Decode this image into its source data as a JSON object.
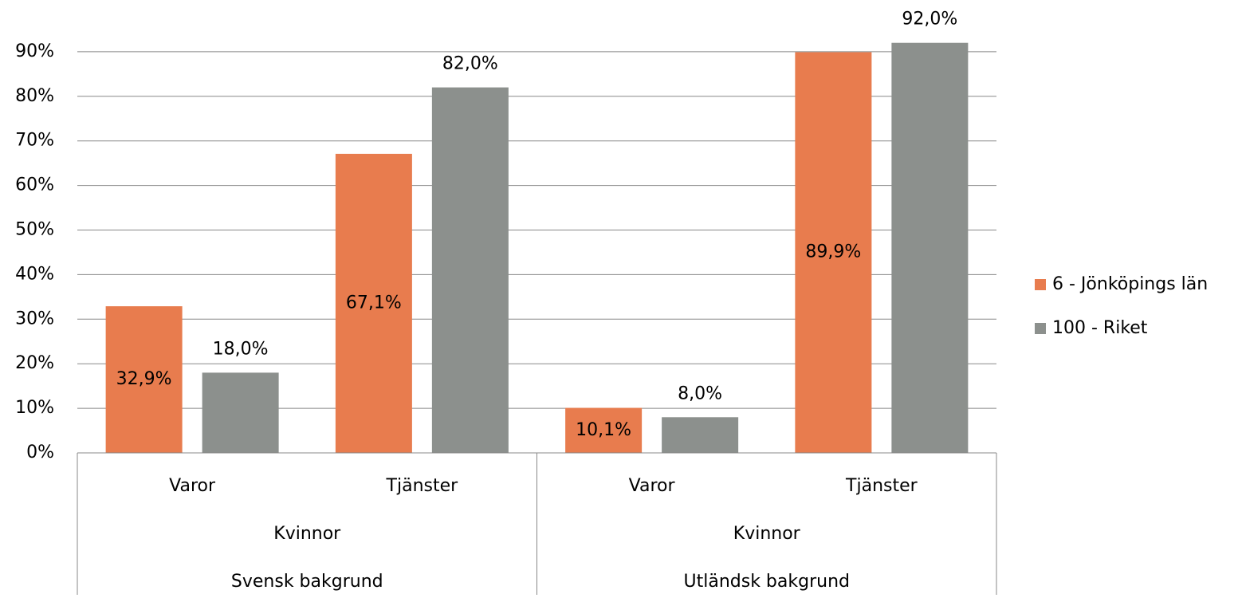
{
  "chart_data": {
    "type": "bar",
    "categories": [
      "Varor",
      "Tjänster",
      "Varor",
      "Tjänster"
    ],
    "subgroups": [
      "Kvinnor",
      "Kvinnor"
    ],
    "groups": [
      "Svensk bakgrund",
      "Utländsk bakgrund"
    ],
    "series": [
      {
        "name": "6 - Jönköpings län",
        "color": "#e87c4e",
        "values": [
          32.9,
          67.1,
          10.1,
          89.9
        ],
        "value_labels": [
          "32,9%",
          "67,1%",
          "10,1%",
          "89,9%"
        ]
      },
      {
        "name": "100 - Riket",
        "color": "#8c908d",
        "values": [
          18.0,
          82.0,
          8.0,
          92.0
        ],
        "value_labels": [
          "18,0%",
          "82,0%",
          "8,0%",
          "92,0%"
        ]
      }
    ],
    "ylim": [
      0,
      100
    ],
    "yticks": [
      {
        "value": 0,
        "label": "0%"
      },
      {
        "value": 10,
        "label": "10%"
      },
      {
        "value": 20,
        "label": "20%"
      },
      {
        "value": 30,
        "label": "30%"
      },
      {
        "value": 40,
        "label": "40%"
      },
      {
        "value": 50,
        "label": "50%"
      },
      {
        "value": 60,
        "label": "60%"
      },
      {
        "value": 70,
        "label": "70%"
      },
      {
        "value": 80,
        "label": "80%"
      },
      {
        "value": 90,
        "label": "90%"
      }
    ],
    "grid": true,
    "legend": "right"
  }
}
